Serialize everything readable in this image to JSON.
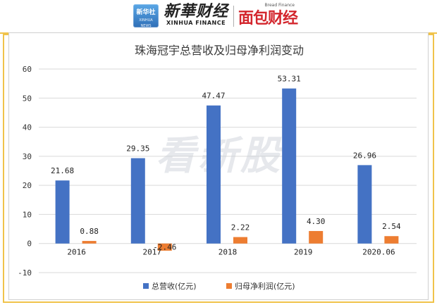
{
  "header": {
    "badge_cn": "新华社",
    "badge_en": "XINHUA NEWS",
    "xinhua_cn": "新華财经",
    "xinhua_en": "XINHUA FINANCE",
    "bread_en": "Bread Finance",
    "bread_cn": "面包财经"
  },
  "watermark": "看新股",
  "colors": {
    "series_1": "#4472c4",
    "series_2": "#ed7d31",
    "frame": "#f0c34b",
    "grid": "#d9d9d9"
  },
  "chart_data": {
    "type": "bar",
    "title": "珠海冠宇总营收及归母净利润变动",
    "categories": [
      "2016",
      "2017",
      "2018",
      "2019",
      "2020.06"
    ],
    "series": [
      {
        "name": "总营收(亿元)",
        "values": [
          21.68,
          29.35,
          47.47,
          53.31,
          26.96
        ],
        "labels": [
          "21.68",
          "29.35",
          "47.47",
          "53.31",
          "26.96"
        ]
      },
      {
        "name": "归母净利润(亿元)",
        "values": [
          0.88,
          -2.46,
          2.22,
          4.3,
          2.54
        ],
        "labels": [
          "0.88",
          "-2.46",
          "2.22",
          "4.30",
          "2.54"
        ]
      }
    ],
    "ylim": [
      -10,
      60
    ],
    "yticks": [
      -10,
      0,
      10,
      20,
      30,
      40,
      50,
      60
    ],
    "grid": true,
    "legend": "bottom"
  }
}
